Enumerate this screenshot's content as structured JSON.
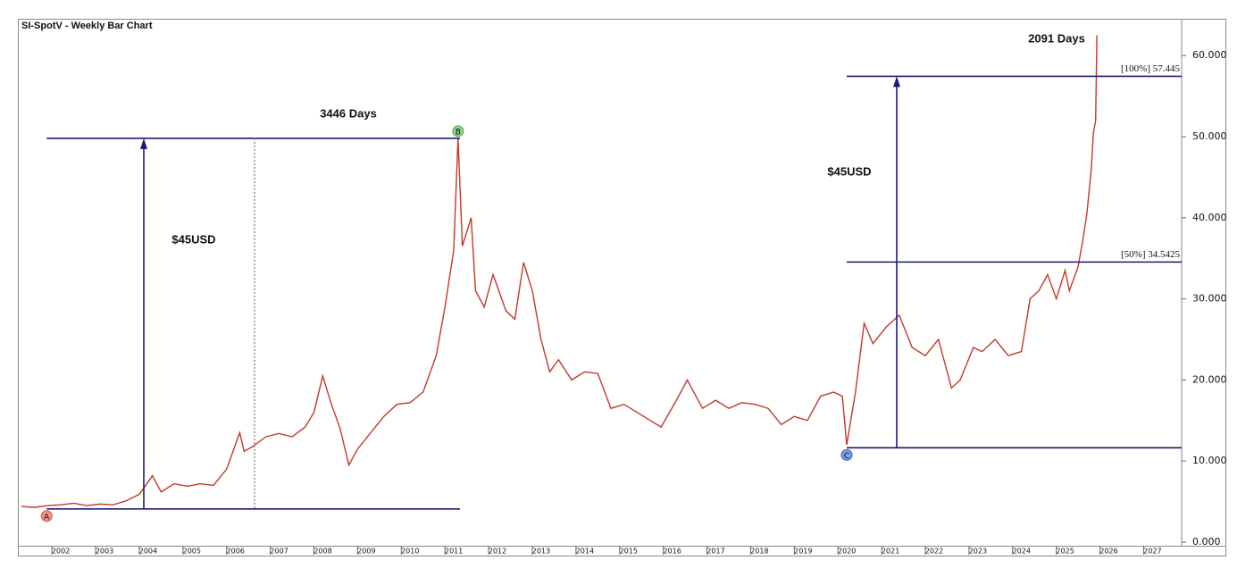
{
  "chart_data": {
    "type": "line",
    "title": "SI-SpotV - Weekly Bar Chart",
    "color": "#c0392b",
    "x": [
      2001.3,
      2001.6,
      2001.9,
      2002.2,
      2002.5,
      2002.8,
      2003.1,
      2003.4,
      2003.7,
      2004.0,
      2004.2,
      2004.3,
      2004.5,
      2004.8,
      2005.1,
      2005.4,
      2005.7,
      2006.0,
      2006.3,
      2006.4,
      2006.6,
      2006.9,
      2007.2,
      2007.5,
      2007.8,
      2008.0,
      2008.2,
      2008.4,
      2008.6,
      2008.8,
      2009.0,
      2009.3,
      2009.6,
      2009.9,
      2010.2,
      2010.5,
      2010.8,
      2011.0,
      2011.2,
      2011.3,
      2011.4,
      2011.6,
      2011.7,
      2011.9,
      2012.1,
      2012.4,
      2012.6,
      2012.8,
      2013.0,
      2013.2,
      2013.4,
      2013.6,
      2013.9,
      2014.2,
      2014.5,
      2014.8,
      2015.1,
      2015.4,
      2015.7,
      2015.95,
      2016.3,
      2016.55,
      2016.9,
      2017.2,
      2017.5,
      2017.8,
      2018.1,
      2018.4,
      2018.7,
      2019.0,
      2019.3,
      2019.6,
      2019.9,
      2020.1,
      2020.2,
      2020.4,
      2020.6,
      2020.8,
      2021.1,
      2021.4,
      2021.7,
      2022.0,
      2022.3,
      2022.6,
      2022.8,
      2023.1,
      2023.3,
      2023.6,
      2023.9,
      2024.2,
      2024.4,
      2024.6,
      2024.8,
      2025.0,
      2025.2,
      2025.3,
      2025.5,
      2025.6,
      2025.7,
      2025.8,
      2025.85,
      2025.9,
      2025.93
    ],
    "values": [
      4.4,
      4.3,
      4.5,
      4.6,
      4.8,
      4.5,
      4.7,
      4.6,
      5.1,
      5.9,
      7.4,
      8.2,
      6.2,
      7.2,
      6.9,
      7.2,
      7.0,
      9.0,
      13.5,
      11.2,
      11.8,
      13.0,
      13.4,
      13.0,
      14.2,
      16.0,
      20.5,
      17.0,
      14.0,
      9.5,
      11.5,
      13.5,
      15.5,
      17.0,
      17.2,
      18.5,
      23.0,
      29.0,
      36.0,
      49.8,
      36.5,
      40.0,
      31.0,
      29.0,
      33.0,
      28.5,
      27.5,
      34.5,
      31.0,
      25.0,
      21.0,
      22.5,
      20.0,
      21.0,
      20.8,
      16.5,
      17.0,
      16.0,
      15.0,
      14.2,
      17.5,
      20.0,
      16.5,
      17.5,
      16.5,
      17.2,
      17.0,
      16.5,
      14.5,
      15.5,
      15.0,
      18.0,
      18.5,
      18.0,
      12.0,
      18.5,
      27.0,
      24.5,
      26.5,
      28.0,
      24.0,
      23.0,
      25.0,
      19.0,
      20.0,
      24.0,
      23.5,
      25.0,
      23.0,
      23.5,
      30.0,
      31.0,
      33.0,
      30.0,
      33.5,
      31.0,
      34.0,
      37.0,
      40.5,
      46.0,
      50.5,
      52.0,
      62.5
    ],
    "xlim": [
      2001.22,
      2027.87
    ],
    "xticks": [
      2002,
      2003,
      2004,
      2005,
      2006,
      2007,
      2008,
      2009,
      2010,
      2011,
      2012,
      2013,
      2014,
      2015,
      2016,
      2017,
      2018,
      2019,
      2020,
      2021,
      2022,
      2023,
      2024,
      2025,
      2026,
      2027
    ],
    "ylim": [
      -0.44,
      64.43
    ],
    "yticks": [
      {
        "value": 0,
        "label": "0.000"
      },
      {
        "value": 10,
        "label": "10.000"
      },
      {
        "value": 20,
        "label": "20.000"
      },
      {
        "value": 30,
        "label": "30.000"
      },
      {
        "value": 40,
        "label": "40.000"
      },
      {
        "value": 50,
        "label": "50.000"
      },
      {
        "value": 60,
        "label": "60.000"
      }
    ],
    "annotation_color": "#1a1a7a",
    "points": [
      {
        "label": "A",
        "x": 2001.88,
        "y": 4.1,
        "color": "#e74c3c"
      },
      {
        "label": "B",
        "x": 2011.3,
        "y": 49.8,
        "color": "#4caf50"
      },
      {
        "label": "C",
        "x": 2020.2,
        "y": 11.64,
        "color": "#2a5bd7"
      }
    ],
    "levels": [
      {
        "label": "[100%] 57.445",
        "value": 57.445
      },
      {
        "label": "[50%] 34.5425",
        "value": 34.5425
      }
    ],
    "annotations": [
      "3446 Days",
      "$45USD",
      "2091 Days",
      "$45USD"
    ]
  }
}
